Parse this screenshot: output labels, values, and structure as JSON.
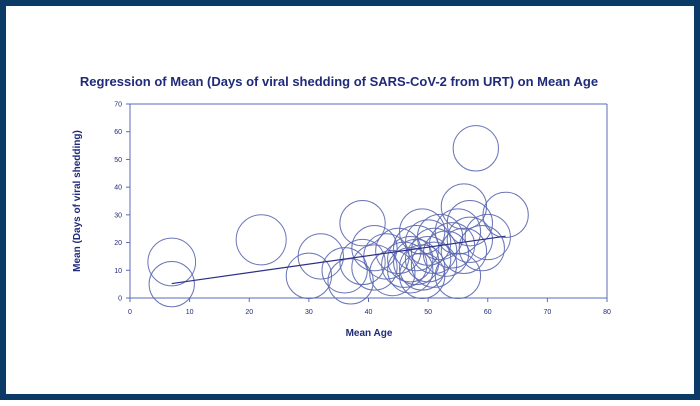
{
  "chart_data": {
    "type": "scatter",
    "title": "Regression of Mean (Days of viral shedding of SARS-CoV-2 from URT) on Mean Age",
    "xlabel": "Mean Age",
    "ylabel": "Mean (Days of viral shedding)",
    "xlim": [
      0,
      80
    ],
    "ylim": [
      0,
      70
    ],
    "x_ticks": [
      0,
      10,
      20,
      30,
      40,
      50,
      60,
      70,
      80
    ],
    "y_ticks": [
      0,
      10,
      20,
      30,
      40,
      50,
      60,
      70
    ],
    "grid": false,
    "legend": "none",
    "colors": {
      "bubble": "#5b67b0",
      "regression": "#2d2f86",
      "text": "#1f2a7a",
      "frame": "#0b3a66"
    },
    "points": [
      {
        "x": 7,
        "y": 13,
        "size": 4.0
      },
      {
        "x": 7,
        "y": 5,
        "size": 3.8
      },
      {
        "x": 22,
        "y": 21,
        "size": 4.2
      },
      {
        "x": 30,
        "y": 8,
        "size": 3.8
      },
      {
        "x": 32,
        "y": 15,
        "size": 3.8
      },
      {
        "x": 36,
        "y": 10,
        "size": 3.8
      },
      {
        "x": 37,
        "y": 6,
        "size": 3.8
      },
      {
        "x": 39,
        "y": 27,
        "size": 3.8
      },
      {
        "x": 39,
        "y": 13,
        "size": 3.8
      },
      {
        "x": 41,
        "y": 18,
        "size": 3.8
      },
      {
        "x": 41,
        "y": 11,
        "size": 3.8
      },
      {
        "x": 43,
        "y": 15,
        "size": 3.8
      },
      {
        "x": 44,
        "y": 9,
        "size": 3.8
      },
      {
        "x": 45,
        "y": 17,
        "size": 3.8
      },
      {
        "x": 46,
        "y": 12,
        "size": 3.8
      },
      {
        "x": 47,
        "y": 14,
        "size": 3.8
      },
      {
        "x": 47,
        "y": 10,
        "size": 3.8
      },
      {
        "x": 48,
        "y": 18,
        "size": 3.8
      },
      {
        "x": 48,
        "y": 13,
        "size": 3.8
      },
      {
        "x": 49,
        "y": 11,
        "size": 3.8
      },
      {
        "x": 49,
        "y": 24,
        "size": 3.8
      },
      {
        "x": 49,
        "y": 8,
        "size": 3.8
      },
      {
        "x": 50,
        "y": 14,
        "size": 3.8
      },
      {
        "x": 50,
        "y": 20,
        "size": 3.8
      },
      {
        "x": 51,
        "y": 17,
        "size": 3.8
      },
      {
        "x": 51,
        "y": 12,
        "size": 3.8
      },
      {
        "x": 52,
        "y": 22,
        "size": 3.8
      },
      {
        "x": 53,
        "y": 16,
        "size": 3.8
      },
      {
        "x": 54,
        "y": 19,
        "size": 3.8
      },
      {
        "x": 55,
        "y": 8,
        "size": 3.8
      },
      {
        "x": 55,
        "y": 24,
        "size": 3.8
      },
      {
        "x": 56,
        "y": 17,
        "size": 3.8
      },
      {
        "x": 56,
        "y": 33,
        "size": 3.8
      },
      {
        "x": 57,
        "y": 21,
        "size": 3.8
      },
      {
        "x": 57,
        "y": 27,
        "size": 3.8
      },
      {
        "x": 58,
        "y": 54,
        "size": 3.8
      },
      {
        "x": 59,
        "y": 18,
        "size": 3.8
      },
      {
        "x": 60,
        "y": 22,
        "size": 3.8
      },
      {
        "x": 63,
        "y": 30,
        "size": 3.8
      }
    ],
    "regression": {
      "x": [
        7,
        63
      ],
      "y": [
        5.2,
        22.3
      ]
    }
  }
}
